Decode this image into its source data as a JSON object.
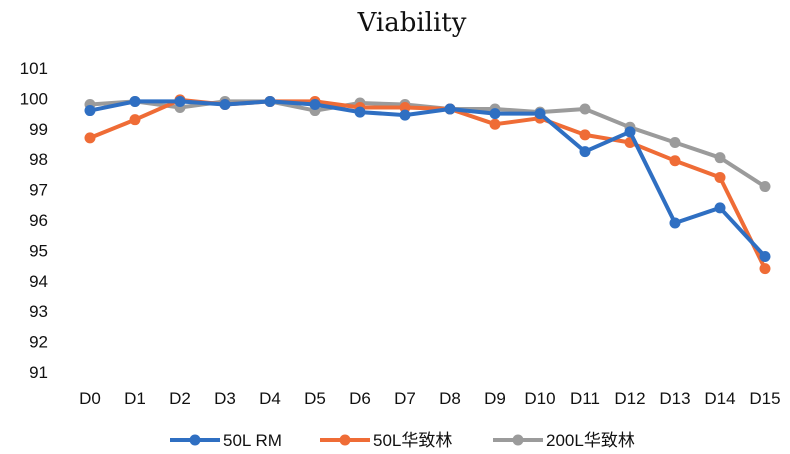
{
  "chart_data": {
    "type": "line",
    "title": "Viability",
    "xlabel": "",
    "ylabel": "",
    "categories": [
      "D0",
      "D1",
      "D2",
      "D3",
      "D4",
      "D5",
      "D6",
      "D7",
      "D8",
      "D9",
      "D10",
      "D11",
      "D12",
      "D13",
      "D14",
      "D15"
    ],
    "y_ticks": [
      "101",
      "100",
      "99",
      "98",
      "97",
      "96",
      "95",
      "94",
      "93",
      "92",
      "91"
    ],
    "ylim": [
      91,
      101
    ],
    "grid": false,
    "legend_position": "bottom",
    "series": [
      {
        "name": "50L RM",
        "color": "#2f6fc2",
        "values": [
          99.6,
          99.9,
          99.9,
          99.8,
          99.9,
          99.8,
          99.55,
          99.45,
          99.65,
          99.5,
          99.5,
          98.25,
          98.9,
          95.9,
          96.4,
          94.8
        ]
      },
      {
        "name": "50L华致林",
        "color": "#ef6c36",
        "values": [
          98.7,
          99.3,
          99.95,
          99.8,
          99.9,
          99.9,
          99.7,
          99.7,
          99.65,
          99.15,
          99.35,
          98.8,
          98.55,
          97.95,
          97.4,
          94.4
        ]
      },
      {
        "name": "200L华致林",
        "color": "#9b9b9b",
        "values": [
          99.8,
          99.9,
          99.7,
          99.9,
          99.9,
          99.6,
          99.85,
          99.8,
          99.65,
          99.65,
          99.55,
          99.65,
          99.05,
          98.55,
          98.05,
          97.1
        ]
      }
    ]
  }
}
